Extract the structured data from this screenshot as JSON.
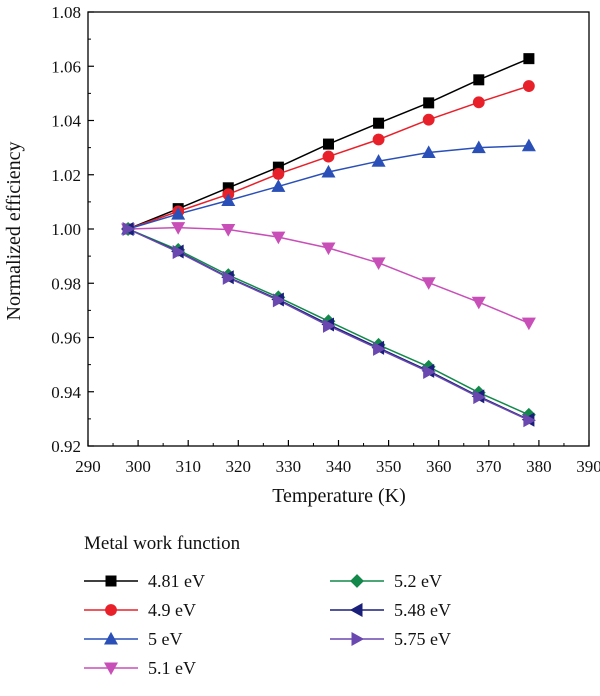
{
  "chart_data": {
    "type": "line",
    "title": "",
    "xlabel": "Temperature (K)",
    "ylabel": "Normalized efficiency",
    "xlim": [
      290,
      390
    ],
    "ylim": [
      0.92,
      1.08
    ],
    "xticks": [
      "290",
      "300",
      "310",
      "320",
      "330",
      "340",
      "350",
      "360",
      "370",
      "380",
      "390"
    ],
    "yticks": [
      "0.92",
      "0.94",
      "0.96",
      "0.98",
      "1.00",
      "1.02",
      "1.04",
      "1.06",
      "1.08"
    ],
    "x": [
      298,
      308,
      318,
      328,
      338,
      348,
      358,
      368,
      378
    ],
    "grid": false,
    "legend": {
      "title": "Metal work function",
      "placement": "bottom"
    },
    "series": [
      {
        "name": "4.81 eV",
        "color": "#000000",
        "marker": "square",
        "values": [
          1.0,
          1.0075,
          1.0152,
          1.0228,
          1.0313,
          1.039,
          1.0465,
          1.055,
          1.0628
        ]
      },
      {
        "name": "4.9 eV",
        "color": "#e8202a",
        "marker": "circle",
        "values": [
          1.0,
          1.0065,
          1.0128,
          1.0203,
          1.0267,
          1.033,
          1.0403,
          1.0467,
          1.0527
        ]
      },
      {
        "name": "5 eV",
        "color": "#2a50b8",
        "marker": "triangle-up",
        "values": [
          1.0,
          1.0055,
          1.0105,
          1.0157,
          1.021,
          1.025,
          1.0282,
          1.03,
          1.0307
        ]
      },
      {
        "name": "5.1 eV",
        "color": "#c94fb8",
        "marker": "triangle-down",
        "values": [
          1.0,
          1.0005,
          0.9998,
          0.997,
          0.993,
          0.9875,
          0.9802,
          0.973,
          0.9653
        ]
      },
      {
        "name": "5.2 eV",
        "color": "#12894a",
        "marker": "diamond",
        "values": [
          1.0,
          0.9923,
          0.983,
          0.9748,
          0.966,
          0.9573,
          0.9492,
          0.9397,
          0.9315
        ]
      },
      {
        "name": "5.48 eV",
        "color": "#1a1f7a",
        "marker": "triangle-left",
        "values": [
          1.0,
          0.9917,
          0.9822,
          0.974,
          0.9648,
          0.9562,
          0.9477,
          0.9383,
          0.9297
        ]
      },
      {
        "name": "5.75 eV",
        "color": "#6a48b0",
        "marker": "triangle-right",
        "values": [
          1.0,
          0.9915,
          0.982,
          0.9737,
          0.9643,
          0.9558,
          0.9473,
          0.938,
          0.9295
        ]
      }
    ]
  }
}
